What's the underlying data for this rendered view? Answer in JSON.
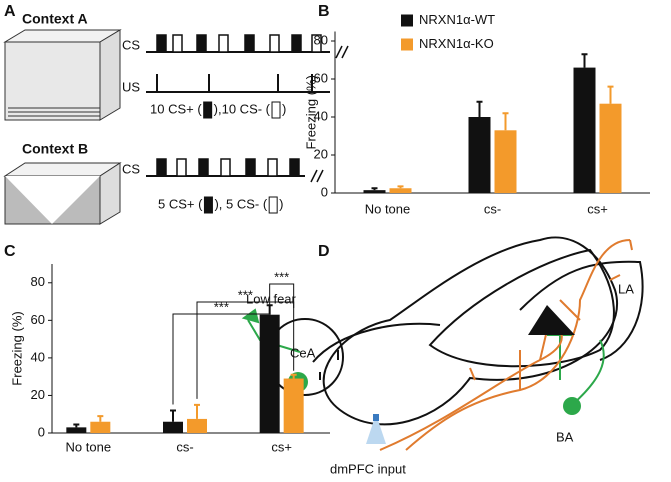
{
  "panels": {
    "labels": [
      "A",
      "B",
      "C",
      "D"
    ],
    "context_a": {
      "title": "Context A",
      "cs": "CS",
      "us": "US",
      "note": [
        "10 CS+ (",
        "),10 CS- (",
        ")"
      ]
    },
    "context_b": {
      "title": "Context B",
      "cs": "CS",
      "note": [
        "5 CS+ (",
        "), 5 CS- (",
        ")"
      ]
    },
    "circuit": {
      "la": "LA",
      "low_fear": "Low fear",
      "cea": "CeA",
      "ba": "BA",
      "input": "dmPFC input"
    }
  },
  "chart_data": [
    {
      "type": "bar",
      "ylabel": "Freezing (%)",
      "categories": [
        "No tone",
        "cs-",
        "cs+"
      ],
      "series": [
        {
          "name": "NRXN1α-WT",
          "color": "#111111",
          "values": [
            1.5,
            40,
            66
          ],
          "errors": [
            1,
            8,
            7
          ]
        },
        {
          "name": "NRXN1α-KO",
          "color": "#f39a2b",
          "values": [
            2.5,
            33,
            47
          ],
          "errors": [
            1,
            9,
            9
          ]
        }
      ],
      "ylim": [
        0,
        85
      ],
      "yticks": [
        0,
        20,
        40,
        60,
        80
      ],
      "legend": "upper left"
    },
    {
      "type": "bar",
      "ylabel": "Freezing (%)",
      "categories": [
        "No tone",
        "cs-",
        "cs+"
      ],
      "series": [
        {
          "name": null,
          "color": "#111111",
          "values": [
            3,
            6,
            63
          ],
          "errors": [
            1.5,
            6,
            5
          ]
        },
        {
          "name": null,
          "color": "#f39a2b",
          "values": [
            6,
            7.5,
            29
          ],
          "errors": [
            3,
            7.5,
            2
          ]
        }
      ],
      "ylim": [
        0,
        90
      ],
      "yticks": [
        0,
        20,
        40,
        60,
        80
      ],
      "annotations": [
        "***",
        "***",
        "***"
      ]
    }
  ]
}
